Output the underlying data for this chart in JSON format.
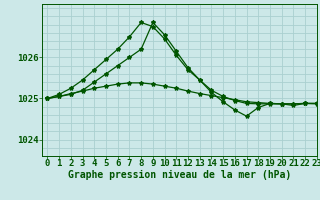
{
  "title": "Graphe pression niveau de la mer (hPa)",
  "background_color": "#cce8e8",
  "grid_color": "#aad0d0",
  "line_color": "#005500",
  "xlim": [
    -0.5,
    23
  ],
  "ylim": [
    1023.6,
    1027.3
  ],
  "yticks": [
    1024,
    1025,
    1026
  ],
  "xticks": [
    0,
    1,
    2,
    3,
    4,
    5,
    6,
    7,
    8,
    9,
    10,
    11,
    12,
    13,
    14,
    15,
    16,
    17,
    18,
    19,
    20,
    21,
    22,
    23
  ],
  "line1_x": [
    0,
    1,
    2,
    3,
    4,
    5,
    6,
    7,
    8,
    9,
    10,
    11,
    12,
    13,
    14,
    15,
    16,
    17,
    18,
    19,
    20,
    21,
    22,
    23
  ],
  "line1_y": [
    1025.0,
    1025.05,
    1025.12,
    1025.18,
    1025.25,
    1025.3,
    1025.35,
    1025.38,
    1025.38,
    1025.35,
    1025.3,
    1025.25,
    1025.18,
    1025.12,
    1025.07,
    1025.02,
    1024.97,
    1024.92,
    1024.9,
    1024.88,
    1024.87,
    1024.87,
    1024.88,
    1024.88
  ],
  "line2_x": [
    0,
    1,
    2,
    3,
    4,
    5,
    6,
    7,
    8,
    9,
    10,
    11,
    12,
    13,
    14,
    15,
    16,
    17,
    18,
    19,
    20,
    21,
    22,
    23
  ],
  "line2_y": [
    1025.0,
    1025.1,
    1025.25,
    1025.45,
    1025.7,
    1025.95,
    1026.2,
    1026.5,
    1026.85,
    1026.75,
    1026.45,
    1026.05,
    1025.7,
    1025.45,
    1025.2,
    1025.05,
    1024.95,
    1024.88,
    1024.87,
    1024.87,
    1024.87,
    1024.87,
    1024.88,
    1024.88
  ],
  "line3_x": [
    0,
    1,
    2,
    3,
    4,
    5,
    6,
    7,
    8,
    9,
    10,
    11,
    12,
    13,
    14,
    15,
    16,
    17,
    18,
    19,
    20,
    21,
    22,
    23
  ],
  "line3_y": [
    1025.0,
    1025.05,
    1025.1,
    1025.2,
    1025.4,
    1025.6,
    1025.8,
    1026.0,
    1026.2,
    1026.85,
    1026.55,
    1026.15,
    1025.75,
    1025.45,
    1025.15,
    1024.92,
    1024.72,
    1024.57,
    1024.78,
    1024.88,
    1024.87,
    1024.83,
    1024.88,
    1024.87
  ],
  "tick_fontsize": 6.5,
  "title_fontsize": 7.0,
  "spine_color": "#005500"
}
